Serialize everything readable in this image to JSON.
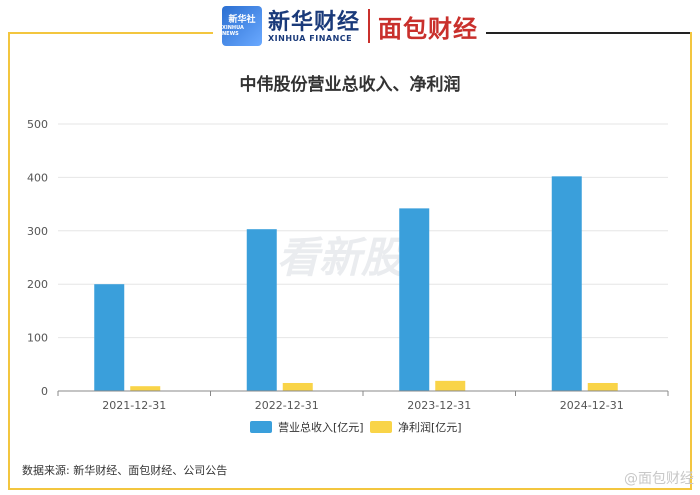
{
  "brand": {
    "badge_line1": "新华社",
    "badge_line2": "XINHUA NEWS",
    "name_cn": "新华财经",
    "name_en": "XINHUA FINANCE",
    "partner": "面包财经"
  },
  "chart_data": {
    "type": "bar",
    "title": "中伟股份营业总收入、净利润",
    "categories": [
      "2021-12-31",
      "2022-12-31",
      "2023-12-31",
      "2024-12-31"
    ],
    "series": [
      {
        "name": "营业总收入[亿元]",
        "color": "#3a9fdb",
        "values": [
          200,
          303,
          342,
          402
        ]
      },
      {
        "name": "净利润[亿元]",
        "color": "#f9d448",
        "values": [
          9,
          15,
          19,
          15
        ]
      }
    ],
    "ylim": [
      0,
      500
    ],
    "yticks": [
      0,
      100,
      200,
      300,
      400,
      500
    ],
    "grid": true,
    "legend": "bottom-center",
    "watermark": "看新股"
  },
  "footer": {
    "source": "数据来源: 新华财经、面包财经、公司公告",
    "watermark": "@面包财经"
  }
}
